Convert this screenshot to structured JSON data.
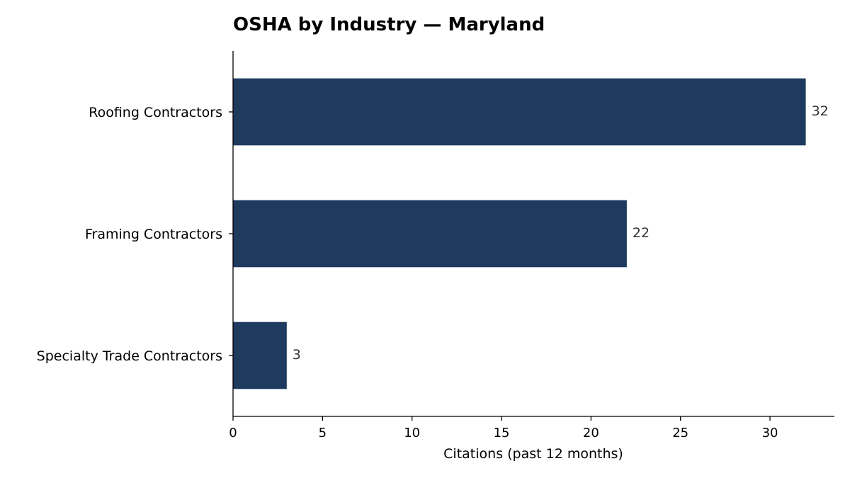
{
  "chart_data": {
    "type": "bar",
    "orientation": "horizontal",
    "title": "OSHA by Industry — Maryland",
    "xlabel": "Citations (past 12 months)",
    "ylabel": "",
    "categories": [
      "Roofing Contractors",
      "Framing Contractors",
      "Specialty Trade Contractors"
    ],
    "values": [
      32,
      22,
      3
    ],
    "data_labels": [
      "32",
      "22",
      "3"
    ],
    "xlim": [
      0,
      33.6
    ],
    "xticks": [
      0,
      5,
      10,
      15,
      20,
      25,
      30
    ],
    "grid": false,
    "bar_color": "#1f3a5f"
  }
}
